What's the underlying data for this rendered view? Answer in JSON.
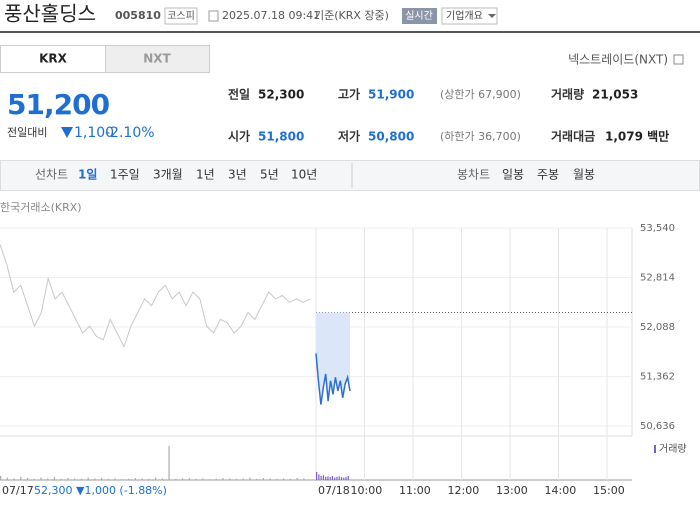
{
  "header": {
    "name": "풍산홀딩스",
    "code": "005810",
    "market": "코스피",
    "time": "2025.07.18 09:41",
    "basis": "기준(KRX 장중)",
    "realtime": "실시간",
    "overview": "기업개요"
  },
  "tabs": [
    "KRX",
    "NXT"
  ],
  "nxt_link": "넥스트레이드(NXT)",
  "price": {
    "current": "51,200",
    "change_label": "전일대비",
    "change": "1,100",
    "change_pct": "-2.10%"
  },
  "stats": [
    {
      "label": "전일",
      "value": "52,300"
    },
    {
      "label": "고가",
      "value": "51,900",
      "extra": "(상한가 67,900)"
    },
    {
      "label": "거래량",
      "value": "21,053"
    },
    {
      "label": "시가",
      "value": "51,800"
    },
    {
      "label": "저가",
      "value": "50,800",
      "extra": "(하한가 36,700)"
    },
    {
      "label": "거래대금",
      "value": "1,079 백만"
    }
  ],
  "toolbar": {
    "line_label": "선차트",
    "periods": [
      "1일",
      "1주일",
      "3개월",
      "1년",
      "3년",
      "5년",
      "10년"
    ],
    "candle_label": "봉차트",
    "candles": [
      "일봉",
      "주봉",
      "월봉"
    ]
  },
  "chart_data": {
    "type": "line",
    "source": "한국거래소(KRX)",
    "ylim": [
      50636,
      53540
    ],
    "yticks": [
      {
        "value": 53540,
        "label": "53,540"
      },
      {
        "value": 52814,
        "label": "52,814"
      },
      {
        "value": 52088,
        "label": "52,088"
      },
      {
        "value": 51362,
        "label": "51,362"
      },
      {
        "value": 50636,
        "label": "50,636"
      }
    ],
    "reference": 52300,
    "prev_label": "07/17",
    "prev_summary": "52,300 ▼1,000 (-1.88%)",
    "xticks": [
      "07/18",
      "10:00",
      "11:00",
      "12:00",
      "13:00",
      "14:00",
      "15:00"
    ],
    "series": [
      {
        "color": "#c8c8c8",
        "values": [
          53300,
          53000,
          52600,
          52700,
          52400,
          52100,
          52300,
          52800,
          52500,
          52600,
          52400,
          52200,
          52000,
          52100,
          51950,
          51900,
          52200,
          52000,
          51800,
          52100,
          52300,
          52500,
          52400,
          52600,
          52700,
          52500,
          52600,
          52400,
          52600,
          52500,
          52100,
          52000,
          52200,
          52150,
          52000,
          52100,
          52300,
          52200,
          52400,
          52600,
          52500,
          52550,
          52450,
          52500,
          52450,
          52500
        ]
      },
      {
        "color": "#2f6fcf",
        "values": [
          51700,
          51300,
          50950,
          51200,
          51400,
          51000,
          51300,
          51100,
          51350,
          51150,
          51300,
          51050,
          51250,
          51350,
          51150
        ]
      }
    ],
    "volume": {
      "label": "거래량",
      "ylim": [
        0,
        100
      ],
      "prev": [
        10,
        6,
        4,
        8,
        5,
        3,
        6,
        4,
        7,
        3,
        5,
        4,
        3,
        6,
        4,
        5,
        3,
        4,
        2,
        3,
        5,
        4,
        3,
        6,
        4,
        85,
        3,
        4,
        5,
        3,
        4,
        2,
        3,
        5,
        4,
        3,
        4,
        6,
        3,
        5,
        4,
        3,
        4,
        3,
        5,
        4
      ],
      "today": [
        20,
        14,
        10,
        12,
        8,
        9,
        7,
        10,
        6,
        8,
        9,
        7,
        6,
        8,
        10
      ]
    }
  }
}
